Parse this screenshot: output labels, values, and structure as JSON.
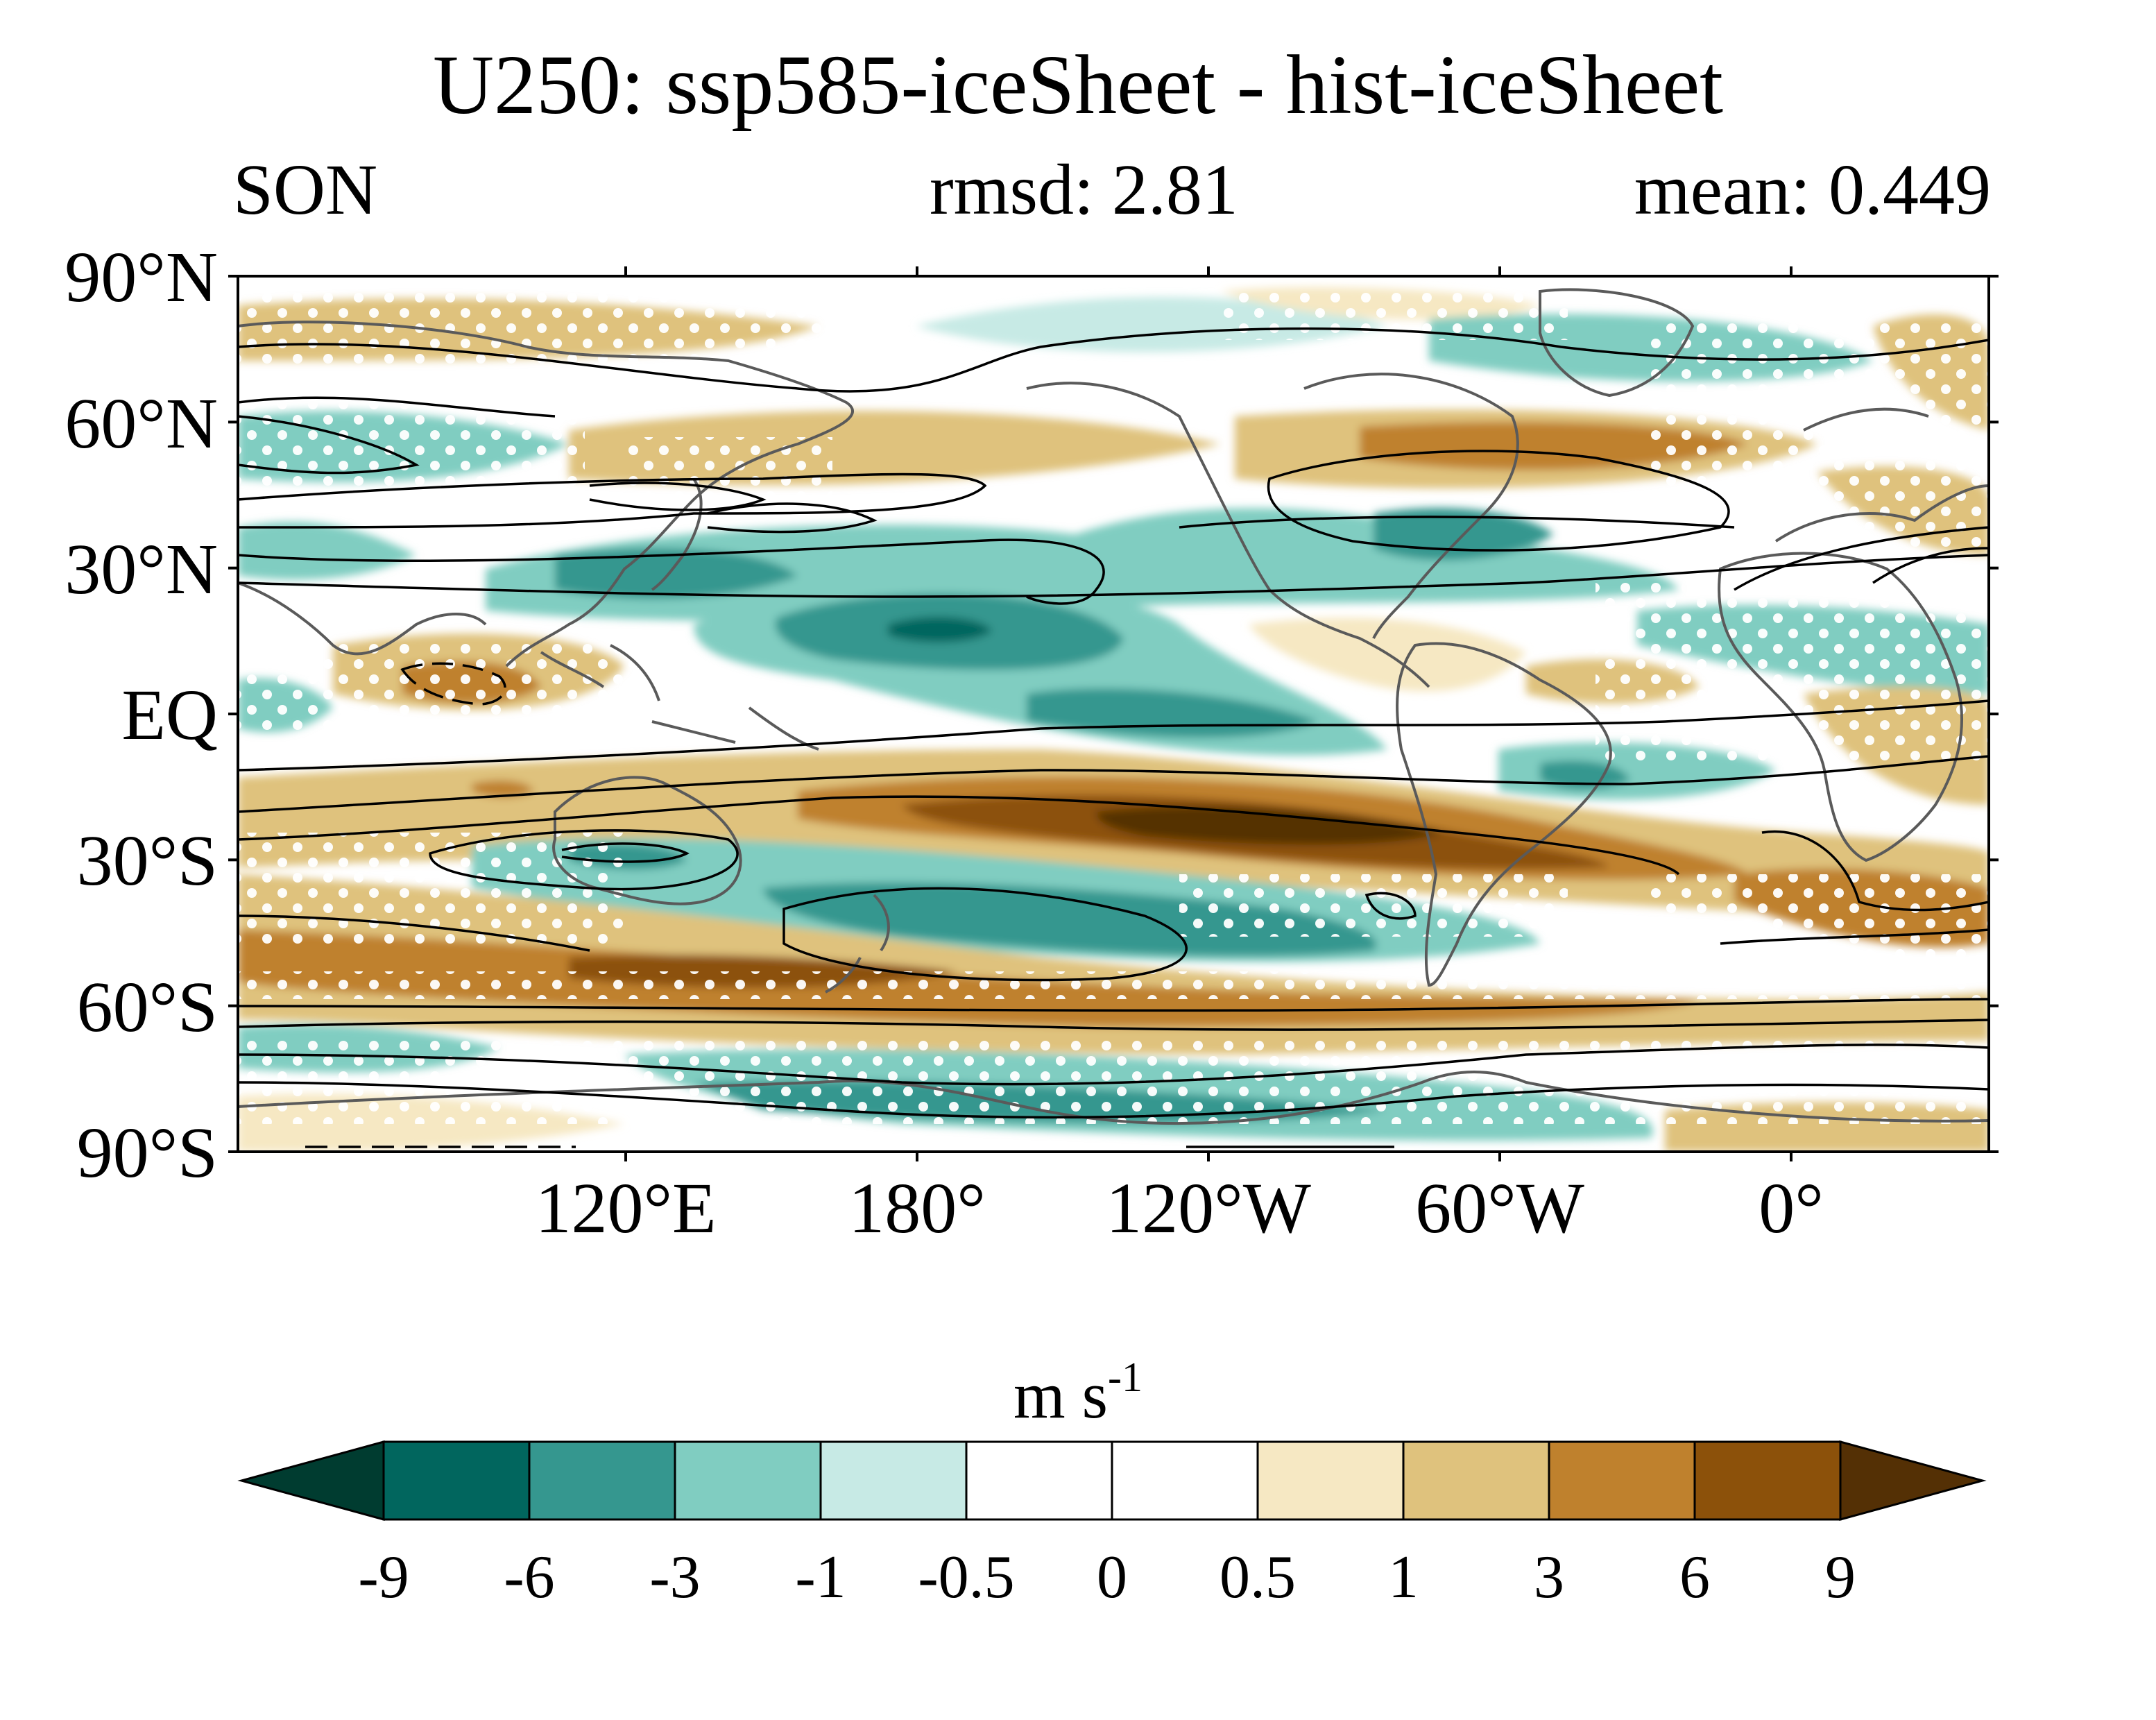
{
  "title": "U250: ssp585-iceSheet - hist-iceSheet",
  "season": "SON",
  "rmsd": "rmsd: 2.81",
  "mean": "mean: 0.449",
  "lat_labels": [
    "90°N",
    "60°N",
    "30°N",
    "EQ",
    "30°S",
    "60°S",
    "90°S"
  ],
  "lon_labels": [
    "120°E",
    "180°",
    "120°W",
    "60°W",
    "0°"
  ],
  "colorbar": {
    "units_base": "m s",
    "units_exp": "-1",
    "levels": [
      "-9",
      "-6",
      "-3",
      "-1",
      "-0.5",
      "0",
      "0.5",
      "1",
      "3",
      "6",
      "9"
    ],
    "colors": [
      "#003c30",
      "#01665e",
      "#35978f",
      "#80cdc1",
      "#c7eae5",
      "#ffffff",
      "#ffffff",
      "#f6e8c3",
      "#dfc27d",
      "#bf812d",
      "#8c510a",
      "#543005"
    ]
  },
  "colors": {
    "coastline": "#5a5a5a",
    "contour": "#000000",
    "stipple": "#ffffff"
  }
}
